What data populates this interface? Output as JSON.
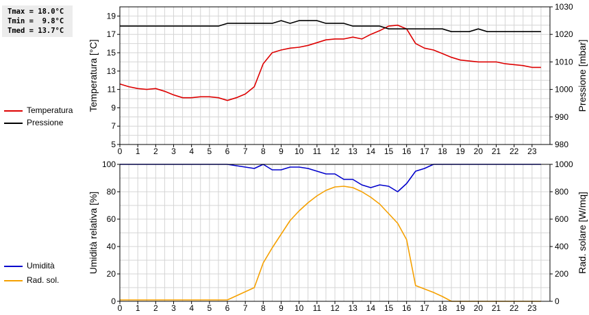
{
  "stats": {
    "tmax": "Tmax = 18.0°C",
    "tmin": "Tmin =  9.8°C",
    "tmed": "Tmed = 13.7°C"
  },
  "legend_top": [
    {
      "label": "Temperatura",
      "color": "#dd0000"
    },
    {
      "label": "Pressione",
      "color": "#000000"
    }
  ],
  "legend_bottom": [
    {
      "label": "Umidità",
      "color": "#0000cc"
    },
    {
      "label": "Rad. sol.",
      "color": "#f5a000"
    }
  ],
  "chart_data": [
    {
      "type": "line",
      "xlabel": "",
      "xlim": [
        0,
        24
      ],
      "xticks": [
        0,
        1,
        2,
        3,
        4,
        5,
        6,
        7,
        8,
        9,
        10,
        11,
        12,
        13,
        14,
        15,
        16,
        17,
        18,
        19,
        20,
        21,
        22,
        23
      ],
      "left_axis": {
        "label": "Temperatura [°C]",
        "ylim": [
          5,
          20
        ],
        "ticks": [
          5,
          7,
          9,
          11,
          13,
          15,
          17,
          19
        ]
      },
      "right_axis": {
        "label": "Pressione [mbar]",
        "ylim": [
          980,
          1030
        ],
        "ticks": [
          980,
          990,
          1000,
          1010,
          1020,
          1030
        ]
      },
      "grid": true,
      "series": [
        {
          "name": "Temperatura",
          "axis": "left",
          "color": "#dd0000",
          "x": [
            0,
            0.5,
            1,
            1.5,
            2,
            2.5,
            3,
            3.5,
            4,
            4.5,
            5,
            5.5,
            6,
            6.5,
            7,
            7.5,
            8,
            8.5,
            9,
            9.5,
            10,
            10.5,
            11,
            11.5,
            12,
            12.5,
            13,
            13.5,
            14,
            14.5,
            15,
            15.5,
            16,
            16.5,
            17,
            17.5,
            18,
            18.5,
            19,
            19.5,
            20,
            20.5,
            21,
            21.5,
            22,
            22.5,
            23,
            23.5
          ],
          "values": [
            11.6,
            11.3,
            11.1,
            11.0,
            11.1,
            10.8,
            10.4,
            10.1,
            10.1,
            10.2,
            10.2,
            10.1,
            9.8,
            10.1,
            10.5,
            11.3,
            13.8,
            15.0,
            15.3,
            15.5,
            15.6,
            15.8,
            16.1,
            16.4,
            16.5,
            16.5,
            16.7,
            16.5,
            17.0,
            17.4,
            17.9,
            18.0,
            17.6,
            16.0,
            15.5,
            15.3,
            14.9,
            14.5,
            14.2,
            14.1,
            14.0,
            14.0,
            14.0,
            13.8,
            13.7,
            13.6,
            13.4,
            13.4
          ]
        },
        {
          "name": "Pressione",
          "axis": "right",
          "color": "#000000",
          "x": [
            0,
            0.5,
            1,
            1.5,
            2,
            2.5,
            3,
            3.5,
            4,
            4.5,
            5,
            5.5,
            6,
            6.5,
            7,
            7.5,
            8,
            8.5,
            9,
            9.5,
            10,
            10.5,
            11,
            11.5,
            12,
            12.5,
            13,
            13.5,
            14,
            14.5,
            15,
            15.5,
            16,
            16.5,
            17,
            17.5,
            18,
            18.5,
            19,
            19.5,
            20,
            20.5,
            21,
            21.5,
            22,
            22.5,
            23,
            23.5
          ],
          "values": [
            1023,
            1023,
            1023,
            1023,
            1023,
            1023,
            1023,
            1023,
            1023,
            1023,
            1023,
            1023,
            1024,
            1024,
            1024,
            1024,
            1024,
            1024,
            1025,
            1024,
            1025,
            1025,
            1025,
            1024,
            1024,
            1024,
            1023,
            1023,
            1023,
            1023,
            1022,
            1022,
            1022,
            1022,
            1022,
            1022,
            1022,
            1021,
            1021,
            1021,
            1022,
            1021,
            1021,
            1021,
            1021,
            1021,
            1021,
            1021
          ]
        }
      ]
    },
    {
      "type": "line",
      "xlabel": "",
      "xlim": [
        0,
        24
      ],
      "xticks": [
        0,
        1,
        2,
        3,
        4,
        5,
        6,
        7,
        8,
        9,
        10,
        11,
        12,
        13,
        14,
        15,
        16,
        17,
        18,
        19,
        20,
        21,
        22,
        23
      ],
      "left_axis": {
        "label": "Umidità relativa [%]",
        "ylim": [
          0,
          100
        ],
        "ticks": [
          0,
          20,
          40,
          60,
          80,
          100
        ]
      },
      "right_axis": {
        "label": "Rad. solare [W/mq]",
        "ylim": [
          0,
          1000
        ],
        "ticks": [
          0,
          200,
          400,
          600,
          800,
          1000
        ]
      },
      "grid": true,
      "series": [
        {
          "name": "Umidità",
          "axis": "left",
          "color": "#0000cc",
          "x": [
            0,
            0.5,
            1,
            1.5,
            2,
            2.5,
            3,
            3.5,
            4,
            4.5,
            5,
            5.5,
            6,
            6.5,
            7,
            7.5,
            8,
            8.5,
            9,
            9.5,
            10,
            10.5,
            11,
            11.5,
            12,
            12.5,
            13,
            13.5,
            14,
            14.5,
            15,
            15.5,
            16,
            16.5,
            17,
            17.5,
            18,
            18.5,
            19,
            19.5,
            20,
            20.5,
            21,
            21.5,
            22,
            22.5,
            23,
            23.5
          ],
          "values": [
            100,
            100,
            100,
            100,
            100,
            100,
            100,
            100,
            100,
            100,
            100,
            100,
            100,
            99,
            98,
            97,
            100,
            96,
            96,
            98,
            98,
            97,
            95,
            93,
            93,
            89,
            89,
            85,
            83,
            85,
            84,
            80,
            86,
            95,
            97,
            100,
            100,
            100,
            100,
            100,
            100,
            100,
            100,
            100,
            100,
            100,
            100,
            100
          ]
        },
        {
          "name": "Rad. sol.",
          "axis": "right",
          "color": "#f5a000",
          "x": [
            0,
            0.5,
            1,
            1.5,
            2,
            2.5,
            3,
            3.5,
            4,
            4.5,
            5,
            5.5,
            6,
            6.5,
            7,
            7.5,
            8,
            8.5,
            9,
            9.5,
            10,
            10.5,
            11,
            11.5,
            12,
            12.5,
            13,
            13.5,
            14,
            14.5,
            15,
            15.5,
            16,
            16.5,
            17,
            17.5,
            18,
            18.5,
            19,
            19.5,
            20,
            20.5,
            21,
            21.5,
            22,
            22.5,
            23,
            23.5
          ],
          "values": [
            10,
            10,
            10,
            10,
            10,
            10,
            10,
            10,
            10,
            10,
            10,
            10,
            10,
            40,
            70,
            100,
            280,
            390,
            490,
            590,
            660,
            720,
            770,
            810,
            835,
            840,
            830,
            800,
            760,
            710,
            640,
            570,
            450,
            115,
            90,
            65,
            35,
            0,
            0,
            0,
            0,
            0,
            0,
            0,
            0,
            0,
            0,
            0
          ]
        }
      ]
    }
  ]
}
